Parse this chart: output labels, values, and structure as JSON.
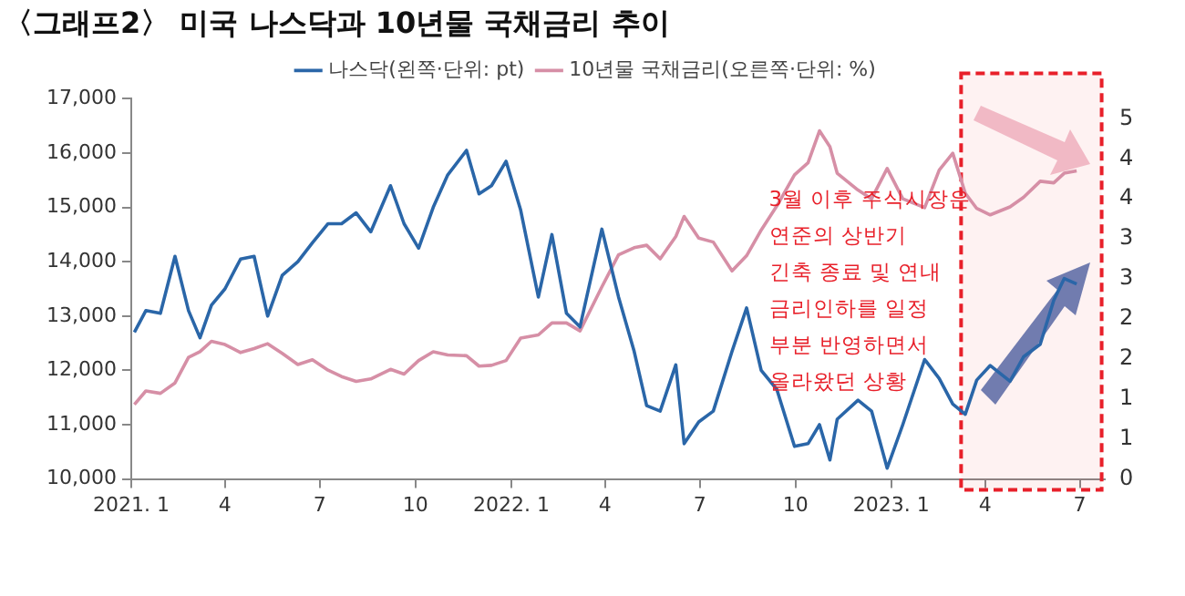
{
  "chart_data": {
    "type": "line",
    "title": "〈그래프2〉 미국 나스닥과 10년물 국채금리 추이",
    "x": [
      "2021-01-04",
      "2021-01-15",
      "2021-01-29",
      "2021-02-12",
      "2021-02-25",
      "2021-03-08",
      "2021-03-19",
      "2021-04-01",
      "2021-04-16",
      "2021-04-29",
      "2021-05-12",
      "2021-05-26",
      "2021-06-10",
      "2021-06-24",
      "2021-07-09",
      "2021-07-22",
      "2021-08-05",
      "2021-08-19",
      "2021-09-07",
      "2021-09-20",
      "2021-10-04",
      "2021-10-18",
      "2021-11-01",
      "2021-11-19",
      "2021-12-01",
      "2021-12-13",
      "2021-12-27",
      "2022-01-10",
      "2022-01-27",
      "2022-02-09",
      "2022-02-23",
      "2022-03-08",
      "2022-03-29",
      "2022-04-14",
      "2022-04-29",
      "2022-05-11",
      "2022-05-24",
      "2022-06-08",
      "2022-06-16",
      "2022-06-30",
      "2022-07-14",
      "2022-08-01",
      "2022-08-15",
      "2022-08-29",
      "2022-09-13",
      "2022-09-30",
      "2022-10-13",
      "2022-10-24",
      "2022-11-03",
      "2022-11-10",
      "2022-11-30",
      "2022-12-13",
      "2022-12-28",
      "2023-01-12",
      "2023-02-02",
      "2023-02-16",
      "2023-03-01",
      "2023-03-13",
      "2023-03-24",
      "2023-04-06",
      "2023-04-25",
      "2023-05-08",
      "2023-05-24",
      "2023-06-06",
      "2023-06-16",
      "2023-06-28"
    ],
    "series": [
      {
        "name": "나스닥(왼쪽·단위: pt)",
        "color": "#2a66a8",
        "values": [
          12700,
          13100,
          13050,
          14100,
          13100,
          12600,
          13200,
          13500,
          14050,
          14100,
          13000,
          13750,
          14000,
          14350,
          14700,
          14700,
          14900,
          14550,
          15400,
          14700,
          14250,
          15000,
          15600,
          16050,
          15250,
          15400,
          15850,
          14950,
          13350,
          14500,
          13050,
          12800,
          14600,
          13350,
          12350,
          11350,
          11250,
          12100,
          10650,
          11050,
          11250,
          12350,
          13150,
          12000,
          11650,
          10600,
          10650,
          11000,
          10350,
          11100,
          11450,
          11250,
          10200,
          11000,
          12200,
          11850,
          11380,
          11190,
          11820,
          12090,
          11800,
          12250,
          12480,
          13290,
          13690,
          13590
        ]
      },
      {
        "name": "10년물 국채금리(오른쪽·단위: %)",
        "color": "#d68fa6",
        "axis": "y2",
        "values": [
          0.93,
          1.1,
          1.07,
          1.2,
          1.52,
          1.59,
          1.72,
          1.68,
          1.58,
          1.63,
          1.69,
          1.57,
          1.43,
          1.49,
          1.36,
          1.28,
          1.22,
          1.25,
          1.37,
          1.31,
          1.48,
          1.59,
          1.55,
          1.54,
          1.41,
          1.42,
          1.48,
          1.76,
          1.8,
          1.95,
          1.95,
          1.85,
          2.4,
          2.8,
          2.89,
          2.92,
          2.75,
          3.03,
          3.28,
          3.01,
          2.96,
          2.6,
          2.79,
          3.11,
          3.41,
          3.8,
          3.95,
          4.35,
          4.15,
          3.82,
          3.61,
          3.5,
          3.88,
          3.5,
          3.39,
          3.86,
          4.07,
          3.57,
          3.38,
          3.3,
          3.4,
          3.52,
          3.72,
          3.7,
          3.82,
          3.85
        ]
      }
    ],
    "xlim": [
      "2021-01-01",
      "2023-07-25"
    ],
    "xticks": [
      {
        "value": "2021-01",
        "label": "2021. 1"
      },
      {
        "value": "2021-04",
        "label": "4"
      },
      {
        "value": "2021-07",
        "label": "7"
      },
      {
        "value": "2021-10",
        "label": "10"
      },
      {
        "value": "2022-01",
        "label": "2022. 1"
      },
      {
        "value": "2022-04",
        "label": "4"
      },
      {
        "value": "2022-07",
        "label": "7"
      },
      {
        "value": "2022-10",
        "label": "10"
      },
      {
        "value": "2023-01",
        "label": "2023. 1"
      },
      {
        "value": "2023-04",
        "label": "4"
      },
      {
        "value": "2023-07",
        "label": "7"
      }
    ],
    "ylim": [
      10000,
      17000
    ],
    "yticks": [
      {
        "value": 10000,
        "label": "10,000"
      },
      {
        "value": 11000,
        "label": "11,000"
      },
      {
        "value": 12000,
        "label": "12,000"
      },
      {
        "value": 13000,
        "label": "13,000"
      },
      {
        "value": 14000,
        "label": "14,000"
      },
      {
        "value": 15000,
        "label": "15,000"
      },
      {
        "value": 16000,
        "label": "16,000"
      },
      {
        "value": 17000,
        "label": "17,000"
      }
    ],
    "y2lim": [
      0,
      4.75
    ],
    "y2ticks": [
      0,
      {
        "value": 0.5,
        "label": "1"
      },
      1,
      {
        "value": 1.5,
        "label": "2"
      },
      2,
      {
        "value": 2.5,
        "label": "3"
      },
      3,
      {
        "value": 3.5,
        "label": "4"
      },
      4,
      {
        "value": 4.5,
        "label": "5"
      }
    ],
    "annotations": [
      "3월 이후 주식시장은\n연준의 상반기\n긴축 종료 및 연내\n금리인하를 일정\n부분 반영하면서\n올라왔던 상황"
    ],
    "bands": [
      {
        "axis": "x",
        "from": "2023-03-09",
        "to": "2023-07-22",
        "color": "#e8202a"
      }
    ],
    "legend": "top",
    "marker": "none",
    "line_style": "solid"
  }
}
